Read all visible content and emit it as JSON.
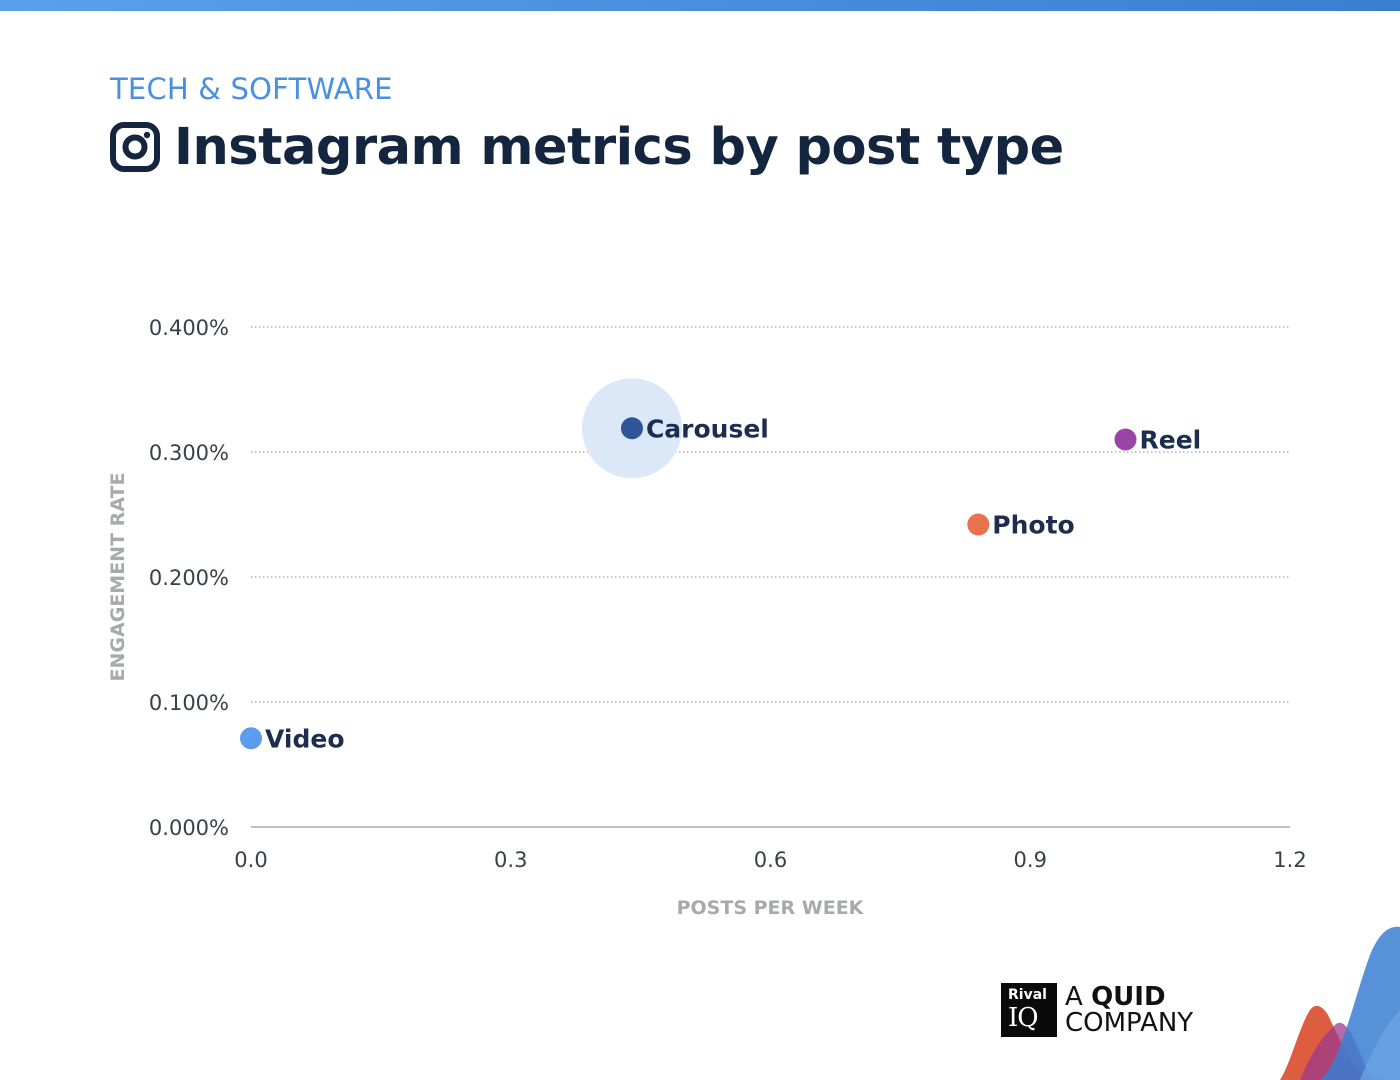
{
  "header": {
    "eyebrow": "TECH & SOFTWARE",
    "title": "Instagram metrics by post type",
    "icon": "instagram-icon"
  },
  "chart_data": {
    "type": "scatter",
    "xlabel": "POSTS PER WEEK",
    "ylabel": "ENGAGEMENT RATE",
    "xlim": [
      0,
      1.2
    ],
    "ylim": [
      0,
      0.4
    ],
    "x_ticks": [
      "0.0",
      "0.3",
      "0.6",
      "0.9",
      "1.2"
    ],
    "y_ticks": [
      "0.000%",
      "0.100%",
      "0.200%",
      "0.300%",
      "0.400%"
    ],
    "grid": "horizontal dotted",
    "points": [
      {
        "name": "Video",
        "x": 0.0,
        "y": 0.071,
        "color": "#5b9cee"
      },
      {
        "name": "Carousel",
        "x": 0.44,
        "y": 0.319,
        "color": "#2f5597",
        "highlight": true,
        "highlight_color": "#dbe8f8"
      },
      {
        "name": "Photo",
        "x": 0.84,
        "y": 0.242,
        "color": "#e8734a"
      },
      {
        "name": "Reel",
        "x": 1.01,
        "y": 0.31,
        "color": "#9b44a8"
      }
    ]
  },
  "brand": {
    "box_top": "Rival",
    "box_bottom": "IQ",
    "line1_prefix": "A ",
    "line1_bold": "QUID",
    "line2": "COMPANY"
  },
  "colors": {
    "title": "#13253f",
    "eyebrow": "#4a90e2",
    "axis_label": "#a7a9ad"
  }
}
